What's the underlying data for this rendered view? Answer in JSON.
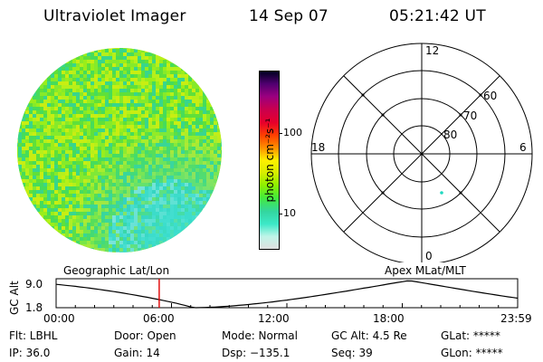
{
  "header": {
    "title": "Ultraviolet Imager",
    "date": "14 Sep 07",
    "time": "05:21:42 UT"
  },
  "colorbar": {
    "label": "photon cm⁻²s⁻¹",
    "tick_high": "100",
    "tick_low": "10",
    "stops": [
      "#e0e0e0",
      "#bff5e8",
      "#3ce8c8",
      "#33d6a0",
      "#45ea3a",
      "#8ff000",
      "#d8ee00",
      "#fff000",
      "#ff9000",
      "#ff4000",
      "#e8002a",
      "#c80050",
      "#9a0080",
      "#500070",
      "#000020"
    ]
  },
  "polar": {
    "labels_mlat": [
      "60",
      "70",
      "80"
    ],
    "label_top": "12",
    "label_bottom": "0",
    "label_left": "18",
    "label_right": "6"
  },
  "strip": {
    "left_label": "Geographic Lat/Lon",
    "right_label": "Apex MLat/MLT",
    "axis_title": "GC Alt",
    "y_top": "9.0",
    "y_bottom": "1.8",
    "x_ticks": [
      "00:00",
      "06:00",
      "12:00",
      "18:00",
      "23:59"
    ],
    "marker_time_hours": 5.36,
    "marker_color": "#e00000"
  },
  "info_row1": {
    "flt": "Flt: LBHL",
    "door": "Door: Open",
    "mode": "Mode: Normal",
    "gcalt": "GC Alt: 4.5 Re",
    "glat": "GLat: *****"
  },
  "info_row2": {
    "ip": "IP: 36.0",
    "gain": "Gain: 14",
    "dsp": "Dsp: −135.1",
    "seq": "Seq: 39",
    "glon": "GLon: *****"
  }
}
